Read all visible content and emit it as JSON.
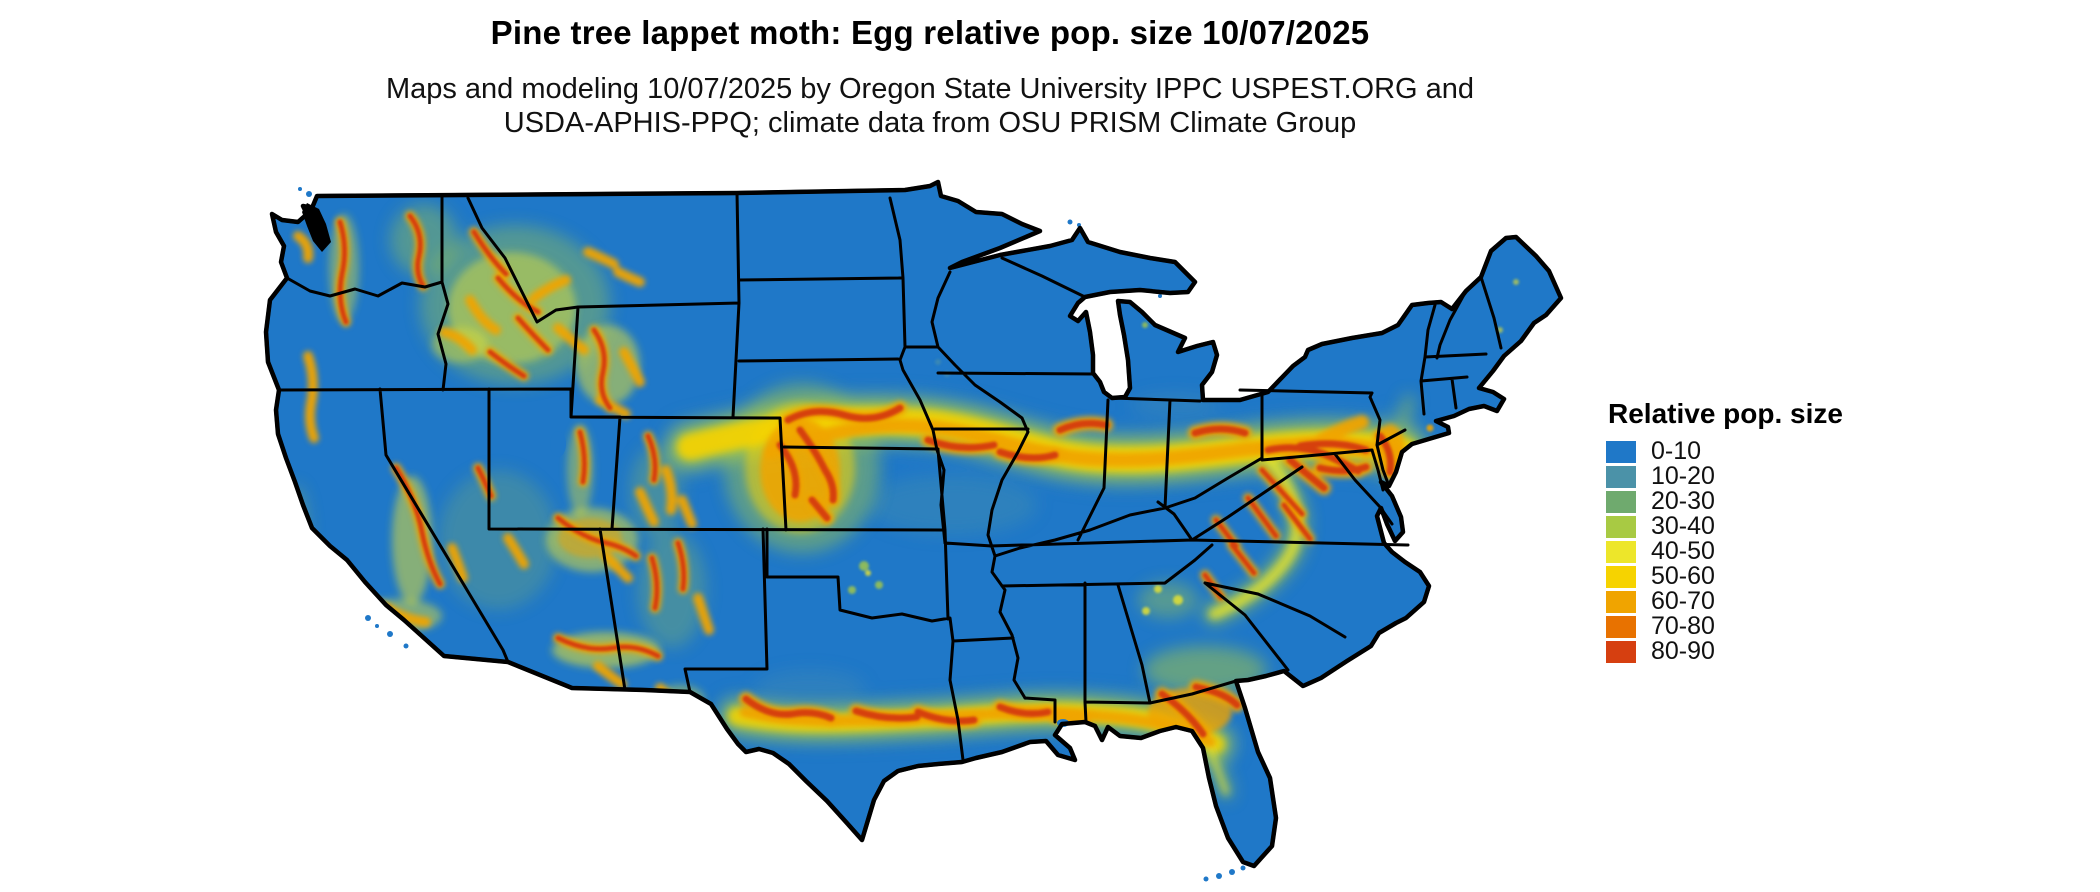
{
  "title": "Pine tree lappet moth: Egg relative pop. size 10/07/2025",
  "subtitle_line1": "Maps and modeling 10/07/2025 by Oregon State University IPPC USPEST.ORG and",
  "subtitle_line2": "USDA-APHIS-PPQ; climate data from OSU PRISM Climate Group",
  "legend": {
    "title": "Relative pop. size",
    "items": [
      {
        "label": "0-10",
        "color": "#1f78c8"
      },
      {
        "label": "10-20",
        "color": "#4b92a8"
      },
      {
        "label": "20-30",
        "color": "#6faa6e"
      },
      {
        "label": "30-40",
        "color": "#a8ca43"
      },
      {
        "label": "40-50",
        "color": "#ede62a"
      },
      {
        "label": "50-60",
        "color": "#f6d300"
      },
      {
        "label": "60-70",
        "color": "#f0a400"
      },
      {
        "label": "70-80",
        "color": "#e87200"
      },
      {
        "label": "80-90",
        "color": "#d63f10"
      }
    ]
  },
  "map": {
    "region": "Contiguous United States",
    "base_fill_color": "#1f78c8",
    "border_color": "#000000",
    "background_color": "#ffffff"
  }
}
